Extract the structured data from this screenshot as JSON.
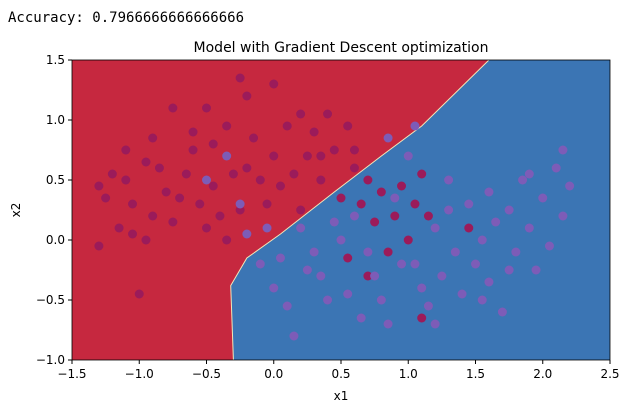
{
  "console": {
    "accuracy_label": "Accuracy:",
    "accuracy_value": "0.7966666666666666"
  },
  "colors": {
    "region_class_0": "#c6283f",
    "region_class_1": "#3b75b4",
    "points_class_0": "#9b1b5a",
    "points_class_1": "#7d5cb7"
  },
  "chart_data": {
    "type": "scatter",
    "title": "Model with Gradient Descent optimization",
    "xlabel": "x1",
    "ylabel": "x2",
    "xlim": [
      -1.5,
      2.5
    ],
    "ylim": [
      -1.0,
      1.5
    ],
    "xticks": [
      "−1.5",
      "−1.0",
      "−0.5",
      "0.0",
      "0.5",
      "1.0",
      "1.5",
      "2.0",
      "2.5"
    ],
    "yticks": [
      "−1.0",
      "−0.5",
      "0.0",
      "0.5",
      "1.0",
      "1.5"
    ],
    "grid": false,
    "decision_boundary": [
      [
        -0.3,
        -1.0
      ],
      [
        -0.32,
        -0.38
      ],
      [
        -0.2,
        -0.15
      ],
      [
        0.05,
        0.05
      ],
      [
        0.45,
        0.4
      ],
      [
        0.8,
        0.7
      ],
      [
        1.1,
        0.95
      ],
      [
        1.6,
        1.5
      ]
    ],
    "series": [
      {
        "class": 0,
        "points": [
          [
            -1.3,
            0.45
          ],
          [
            -1.2,
            0.55
          ],
          [
            -1.25,
            0.35
          ],
          [
            -1.1,
            0.5
          ],
          [
            -1.05,
            0.3
          ],
          [
            -1.15,
            0.1
          ],
          [
            -1.3,
            -0.05
          ],
          [
            -1.0,
            -0.45
          ],
          [
            -1.05,
            0.05
          ],
          [
            -0.95,
            0.0
          ],
          [
            -0.9,
            0.2
          ],
          [
            -0.85,
            0.6
          ],
          [
            -0.8,
            0.4
          ],
          [
            -0.75,
            0.15
          ],
          [
            -0.7,
            0.35
          ],
          [
            -0.65,
            0.55
          ],
          [
            -0.6,
            0.75
          ],
          [
            -0.55,
            0.3
          ],
          [
            -0.5,
            0.1
          ],
          [
            -0.45,
            0.45
          ],
          [
            -0.4,
            0.2
          ],
          [
            -0.35,
            0.0
          ],
          [
            -0.3,
            0.55
          ],
          [
            -0.25,
            0.25
          ],
          [
            -0.2,
            0.6
          ],
          [
            -0.15,
            0.85
          ],
          [
            -0.1,
            0.5
          ],
          [
            -0.05,
            0.3
          ],
          [
            0.0,
            0.7
          ],
          [
            0.05,
            0.45
          ],
          [
            0.1,
            0.95
          ],
          [
            0.15,
            0.55
          ],
          [
            0.2,
            0.25
          ],
          [
            0.25,
            0.7
          ],
          [
            0.3,
            0.9
          ],
          [
            0.35,
            0.5
          ],
          [
            0.4,
            1.05
          ],
          [
            0.45,
            0.75
          ],
          [
            0.5,
            0.35
          ],
          [
            0.55,
            0.95
          ],
          [
            0.6,
            0.6
          ],
          [
            0.65,
            0.3
          ],
          [
            0.7,
            0.5
          ],
          [
            0.75,
            0.15
          ],
          [
            0.8,
            0.4
          ],
          [
            0.85,
            -0.1
          ],
          [
            0.9,
            0.2
          ],
          [
            0.95,
            0.45
          ],
          [
            1.0,
            0.0
          ],
          [
            1.05,
            0.3
          ],
          [
            1.1,
            0.55
          ],
          [
            1.15,
            0.2
          ],
          [
            0.55,
            -0.15
          ],
          [
            0.7,
            -0.3
          ],
          [
            1.1,
            -0.65
          ],
          [
            1.45,
            0.1
          ],
          [
            -0.25,
            1.35
          ],
          [
            -0.5,
            1.1
          ],
          [
            -0.75,
            1.1
          ],
          [
            -0.6,
            0.9
          ],
          [
            -0.9,
            0.85
          ],
          [
            -0.45,
            0.8
          ],
          [
            -0.2,
            1.2
          ],
          [
            0.0,
            1.3
          ],
          [
            0.2,
            1.05
          ],
          [
            -0.35,
            0.95
          ],
          [
            -0.95,
            0.65
          ],
          [
            -1.1,
            0.75
          ],
          [
            0.35,
            0.7
          ],
          [
            0.6,
            0.75
          ]
        ]
      },
      {
        "class": 1,
        "points": [
          [
            -0.5,
            0.5
          ],
          [
            -0.35,
            0.7
          ],
          [
            -0.25,
            0.3
          ],
          [
            -0.2,
            0.05
          ],
          [
            -0.1,
            -0.2
          ],
          [
            0.0,
            -0.4
          ],
          [
            0.1,
            -0.55
          ],
          [
            0.15,
            -0.8
          ],
          [
            0.2,
            0.1
          ],
          [
            0.3,
            -0.1
          ],
          [
            0.35,
            -0.3
          ],
          [
            0.4,
            -0.5
          ],
          [
            0.5,
            0.0
          ],
          [
            0.55,
            -0.45
          ],
          [
            0.6,
            0.2
          ],
          [
            0.65,
            -0.65
          ],
          [
            0.7,
            -0.1
          ],
          [
            0.75,
            -0.3
          ],
          [
            0.8,
            -0.5
          ],
          [
            0.85,
            -0.7
          ],
          [
            0.9,
            0.35
          ],
          [
            1.0,
            0.7
          ],
          [
            1.05,
            -0.2
          ],
          [
            1.1,
            -0.4
          ],
          [
            1.15,
            -0.55
          ],
          [
            1.2,
            0.1
          ],
          [
            1.25,
            -0.3
          ],
          [
            1.3,
            0.5
          ],
          [
            1.35,
            -0.1
          ],
          [
            1.4,
            -0.45
          ],
          [
            1.45,
            0.3
          ],
          [
            1.5,
            -0.2
          ],
          [
            1.55,
            0.0
          ],
          [
            1.6,
            -0.35
          ],
          [
            1.65,
            0.15
          ],
          [
            1.7,
            -0.6
          ],
          [
            1.75,
            0.25
          ],
          [
            1.8,
            -0.1
          ],
          [
            1.85,
            0.5
          ],
          [
            1.9,
            0.1
          ],
          [
            1.95,
            -0.25
          ],
          [
            2.0,
            0.35
          ],
          [
            2.05,
            -0.05
          ],
          [
            2.1,
            0.6
          ],
          [
            2.15,
            0.2
          ],
          [
            2.2,
            0.45
          ],
          [
            2.15,
            0.75
          ],
          [
            1.9,
            0.55
          ],
          [
            1.6,
            0.4
          ],
          [
            1.3,
            0.25
          ],
          [
            1.05,
            0.95
          ],
          [
            0.85,
            0.85
          ],
          [
            0.45,
            0.15
          ],
          [
            0.25,
            -0.25
          ],
          [
            -0.05,
            0.1
          ],
          [
            0.05,
            -0.15
          ],
          [
            1.55,
            -0.5
          ],
          [
            1.75,
            -0.25
          ],
          [
            1.2,
            -0.7
          ],
          [
            0.95,
            -0.2
          ]
        ]
      }
    ]
  }
}
